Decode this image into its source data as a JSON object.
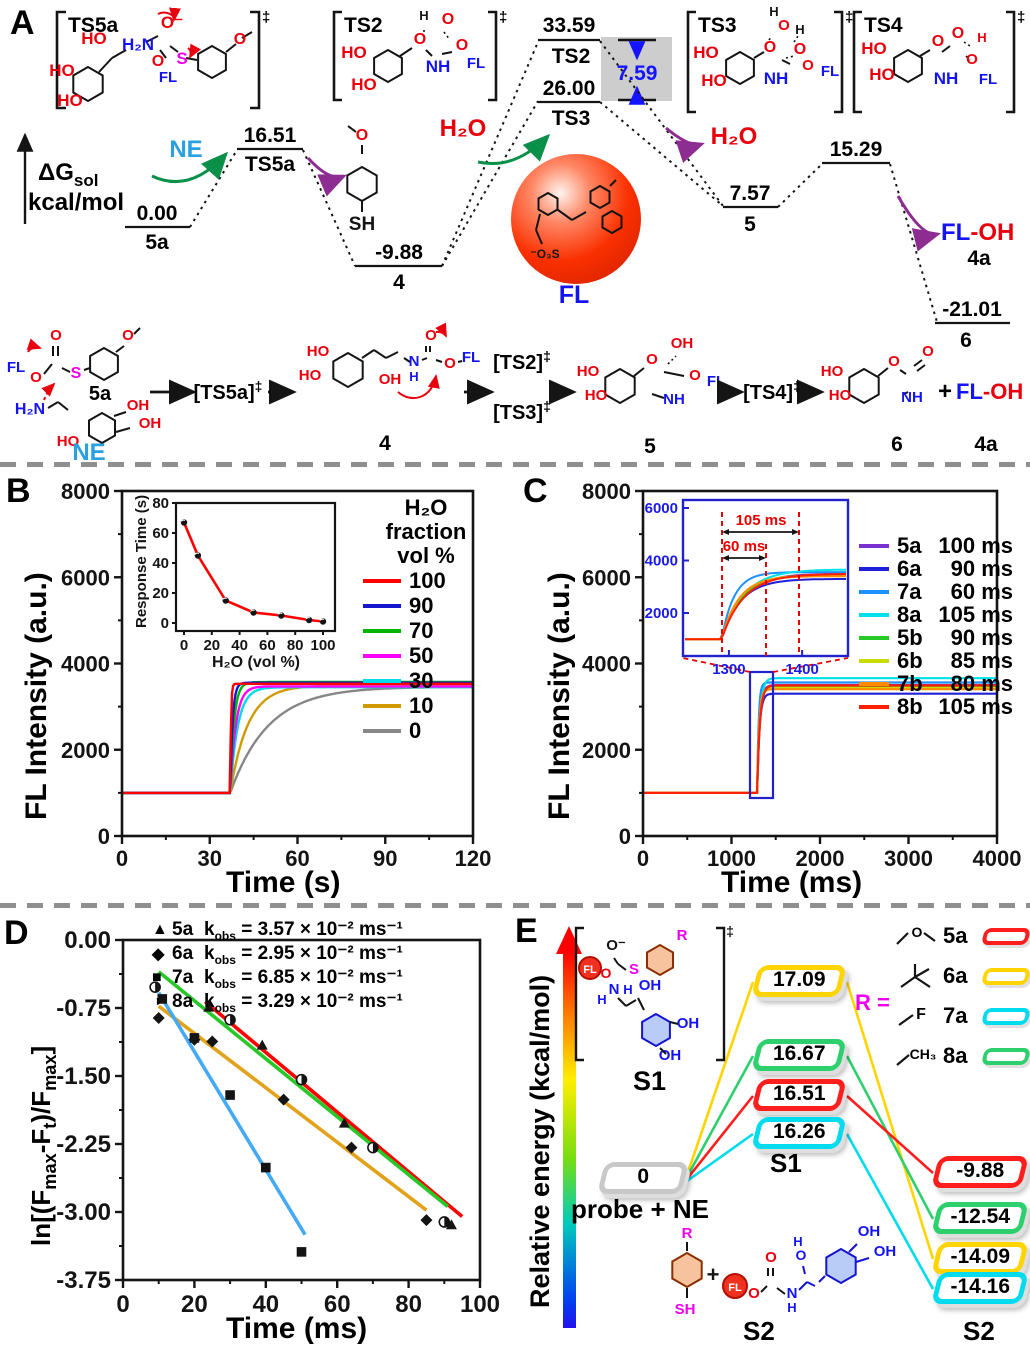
{
  "figure": {
    "panel_labels": {
      "A": "A",
      "B": "B",
      "C": "C",
      "D": "D",
      "E": "E"
    }
  },
  "panelA": {
    "yaxis": {
      "dg": "ΔG",
      "dg_sub": "sol",
      "unit": "kcal/mol"
    },
    "levels": [
      {
        "value": "0.00",
        "name": "5a"
      },
      {
        "value": "16.51",
        "name": "TS5a"
      },
      {
        "value": "-9.88",
        "name": "4"
      },
      {
        "value": "33.59",
        "name": "TS2"
      },
      {
        "value": "26.00",
        "name": "TS3"
      },
      {
        "value": "7.57",
        "name": "5"
      },
      {
        "value": "15.29",
        "name": ""
      },
      {
        "value": "-21.01",
        "name": "6"
      }
    ],
    "gap_value": "7.59",
    "labels": {
      "ne": "NE",
      "h2o": "H₂O",
      "fl": "FL",
      "fl_dash_oh": "-OH",
      "product_4a": "4a"
    },
    "ts_names": [
      "TS5a",
      "TS2",
      "TS3",
      "TS4"
    ],
    "scheme": {
      "c5a": "5a",
      "ne": "NE",
      "ts5a": "[TS5a]",
      "c4": "4",
      "ts2": "[TS2]",
      "ts3": "[TS3]",
      "c5": "5",
      "ts4": "[TS4]",
      "c6": "6",
      "plus": "+",
      "c4a": "4a"
    },
    "atoms": {
      "HO": "HO",
      "OH": "OH",
      "O": "O",
      "O_minus": "O⁻",
      "S": "S",
      "N": "N",
      "NH": "NH",
      "H": "H",
      "H2N": "H₂N",
      "FL": "FL",
      "SH": "SH",
      "O3S": "⁻O₃S",
      "ddagger": "‡",
      "R": "R",
      "F": "F",
      "CH3": "CH₃",
      "plus": "+"
    }
  },
  "chart_data": [
    {
      "panel": "B",
      "type": "line",
      "xlabel": "Time (s)",
      "ylabel": "FL Intensity (a.u.)",
      "xlim": [
        0,
        120
      ],
      "ylim": [
        0,
        8000
      ],
      "xticks": [
        0,
        30,
        60,
        90,
        120
      ],
      "yticks": [
        0,
        2000,
        4000,
        6000,
        8000
      ],
      "legend_title_1": "H₂O fraction",
      "legend_title_2": "vol %",
      "baseline": 1000,
      "jump_time_s": 37,
      "series": [
        {
          "label": "100",
          "color": "#ff0000",
          "response_tau": 0.25,
          "plateau": 3530
        },
        {
          "label": "90",
          "color": "#1616cd",
          "response_tau": 0.8,
          "plateau": 3555
        },
        {
          "label": "70",
          "color": "#00b400",
          "response_tau": 1.3,
          "plateau": 3570
        },
        {
          "label": "50",
          "color": "#ff00ff",
          "response_tau": 1.9,
          "plateau": 3470
        },
        {
          "label": "30",
          "color": "#00dce8",
          "response_tau": 2.6,
          "plateau": 3450
        },
        {
          "label": "10",
          "color": "#cf9b00",
          "response_tau": 6.0,
          "plateau": 3490
        },
        {
          "label": "0",
          "color": "#878787",
          "response_tau": 13.0,
          "plateau": 3460
        }
      ]
    },
    {
      "panel": "B-inset",
      "type": "line",
      "xlabel": "H₂O (vol %)",
      "ylabel": "Response Time (s)",
      "xlim": [
        0,
        110
      ],
      "ylim": [
        0,
        80
      ],
      "xticks": [
        0,
        20,
        40,
        60,
        80,
        100
      ],
      "yticks": [
        0,
        20,
        40,
        60,
        80
      ],
      "line_color": "#ff0000",
      "points": [
        [
          0,
          67
        ],
        [
          10,
          45
        ],
        [
          30,
          15
        ],
        [
          50,
          7
        ],
        [
          70,
          5
        ],
        [
          90,
          2
        ],
        [
          100,
          1
        ]
      ]
    },
    {
      "panel": "C",
      "type": "line",
      "xlabel": "Time (ms)",
      "ylabel": "FL Intensity (a.u.)",
      "xlim": [
        0,
        4000
      ],
      "ylim": [
        0,
        8000
      ],
      "xticks": [
        0,
        1000,
        2000,
        3000,
        4000
      ],
      "yticks": [
        0,
        2000,
        4000,
        6000,
        8000
      ],
      "baseline": 1000,
      "jump_time_ms": 1290,
      "series": [
        {
          "label": "5a",
          "time": "100 ms",
          "color": "#7a30d0",
          "response_tau": 28,
          "plateau": 3500
        },
        {
          "label": "6a",
          "time": "90 ms",
          "color": "#2020d8",
          "response_tau": 26,
          "plateau": 3300
        },
        {
          "label": "7a",
          "time": "60 ms",
          "color": "#1e90ff",
          "response_tau": 17,
          "plateau": 3560
        },
        {
          "label": "8a",
          "time": "105 ms",
          "color": "#00e0ea",
          "response_tau": 30,
          "plateau": 3660
        },
        {
          "label": "5b",
          "time": "90 ms",
          "color": "#28c828",
          "response_tau": 26,
          "plateau": 3460
        },
        {
          "label": "6b",
          "time": "85 ms",
          "color": "#c8dc00",
          "response_tau": 24,
          "plateau": 3435
        },
        {
          "label": "7b",
          "time": "80 ms",
          "color": "#ff8c00",
          "response_tau": 23,
          "plateau": 3405
        },
        {
          "label": "8b",
          "time": "105 ms",
          "color": "#ff2000",
          "response_tau": 30,
          "plateau": 3490
        }
      ],
      "inset": {
        "yticks": [
          2000,
          4000,
          6000
        ],
        "xticks": [
          1300,
          1400
        ],
        "span_long": "105 ms",
        "span_short": "60 ms"
      }
    },
    {
      "panel": "D",
      "type": "scatter",
      "xlabel": "Time (ms)",
      "ylabel_segments": [
        [
          "t",
          "ln[(F"
        ],
        [
          "s",
          "max"
        ],
        [
          "t",
          "-F"
        ],
        [
          "s",
          "t"
        ],
        [
          "t",
          ")/F"
        ],
        [
          "s",
          "max"
        ],
        [
          "t",
          "]"
        ]
      ],
      "xlim": [
        0,
        100
      ],
      "ylim": [
        -3.75,
        0
      ],
      "xticks": [
        0,
        20,
        40,
        60,
        80,
        100
      ],
      "ytick_values": [
        0,
        -0.75,
        -1.5,
        -2.25,
        -3,
        -3.75
      ],
      "ytick_labels": [
        "0.00",
        "-0.75",
        "-1.50",
        "-2.25",
        "-3.00",
        "-3.75"
      ],
      "kobs_prefix": "k",
      "kobs_sub": "obs",
      "kobs_eq": " = ",
      "kobs_suffix": " × 10⁻² ms⁻¹",
      "series": [
        {
          "name": "5a",
          "marker": "triangle",
          "marker_glyph": "▲",
          "kobs": "3.57",
          "line_color": "#ff0000",
          "points": [
            [
              24,
              -0.74
            ],
            [
              39,
              -1.16
            ],
            [
              62,
              -2.02
            ],
            [
              92,
              -3.14
            ]
          ],
          "fit": [
            [
              23,
              -0.68
            ],
            [
              95,
              -3.05
            ]
          ]
        },
        {
          "name": "6a",
          "marker": "diamond",
          "marker_glyph": "◆",
          "kobs": "2.95",
          "line_color": "#e2a21c",
          "points": [
            [
              10,
              -0.86
            ],
            [
              20,
              -1.1
            ],
            [
              25,
              -1.12
            ],
            [
              45,
              -1.76
            ],
            [
              64,
              -2.29
            ],
            [
              85,
              -3.09
            ]
          ],
          "fit": [
            [
              10,
              -0.73
            ],
            [
              85,
              -2.98
            ]
          ]
        },
        {
          "name": "7a",
          "marker": "square",
          "marker_glyph": "■",
          "kobs": "6.85",
          "line_color": "#45aaf5",
          "points": [
            [
              11,
              -0.65
            ],
            [
              20,
              -1.08
            ],
            [
              30,
              -1.71
            ],
            [
              40,
              -2.51
            ],
            [
              50,
              -3.44
            ]
          ],
          "fit": [
            [
              10,
              -0.58
            ],
            [
              51,
              -3.25
            ]
          ]
        },
        {
          "name": "8a",
          "marker": "halfcircle",
          "marker_glyph": "◑",
          "kobs": "3.29",
          "line_color": "#28c828",
          "points": [
            [
              9,
              -0.52
            ],
            [
              30,
              -0.88
            ],
            [
              50,
              -1.54
            ],
            [
              70,
              -2.29
            ],
            [
              90,
              -3.11
            ]
          ],
          "fit": [
            [
              10,
              -0.35
            ],
            [
              91,
              -2.94
            ]
          ]
        }
      ]
    },
    {
      "panel": "E",
      "type": "energy-diagram",
      "ylabel": "Relative energy (kcal/mol)",
      "start_value": "0",
      "start_label": "probe + NE",
      "s1_label": "S1",
      "s2_label": "S2",
      "s1_struct_label": "S1",
      "s2_struct_label": "S2",
      "r_equals": "R =",
      "species": [
        {
          "name": "5a",
          "r_group": "OCH₃",
          "color": "#ff1e1e",
          "s1": "16.51",
          "s2": "-9.88"
        },
        {
          "name": "6a",
          "r_group": "C(CH₃)₃",
          "color": "#ffd400",
          "s1": "17.09",
          "s2": "-14.09"
        },
        {
          "name": "7a",
          "r_group": "F",
          "color": "#00dcee",
          "s1": "16.26",
          "s2": "-14.16"
        },
        {
          "name": "8a",
          "r_group": "CH₃",
          "color": "#2ed06e",
          "s1": "16.67",
          "s2": "-12.54"
        }
      ]
    }
  ]
}
